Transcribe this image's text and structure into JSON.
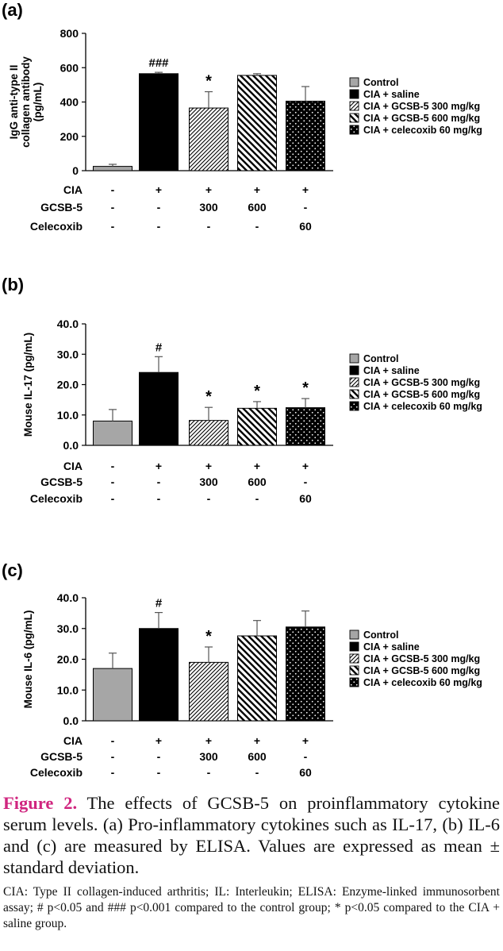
{
  "colors": {
    "control": "#a6a6a6",
    "saline": "#000000",
    "gcsb300": "#ffffff",
    "gcsb600": "#ffffff",
    "celecoxib": "#000000",
    "axis": "#000000",
    "caption_label": "#d0257f"
  },
  "legend": {
    "entries": [
      "Control",
      "CIA + saline",
      "CIA + GCSB-5 300 mg/kg",
      "CIA + GCSB-5 600 mg/kg",
      "CIA + celecoxib 60 mg/kg"
    ],
    "placement": "right"
  },
  "conditions": {
    "labels": [
      "CIA",
      "GCSB-5",
      "Celecoxib"
    ],
    "rows": [
      [
        "-",
        "+",
        "+",
        "+",
        "+"
      ],
      [
        "-",
        "-",
        "300",
        "600",
        "-"
      ],
      [
        "-",
        "-",
        "-",
        "-",
        "60"
      ]
    ]
  },
  "chart_data": [
    {
      "panel": "(a)",
      "type": "bar",
      "ylabel": [
        "IgG anti-type II",
        "collagen antibody",
        "(pg/mL)"
      ],
      "ylim": [
        0,
        800
      ],
      "yticks": [
        "0",
        "200",
        "400",
        "600",
        "800"
      ],
      "values": [
        25,
        565,
        365,
        555,
        405
      ],
      "errors": [
        12,
        8,
        95,
        10,
        85
      ],
      "annotations": [
        "",
        "###",
        "*",
        "",
        ""
      ]
    },
    {
      "panel": "(b)",
      "type": "bar",
      "ylabel": [
        "Mouse IL-17 (pg/mL)"
      ],
      "ylim": [
        0,
        40
      ],
      "yticks": [
        "0.0",
        "10.0",
        "20.0",
        "30.0",
        "40.0"
      ],
      "values": [
        8.0,
        24.0,
        8.2,
        12.2,
        12.4
      ],
      "errors": [
        3.8,
        5.2,
        4.3,
        2.2,
        3.0
      ],
      "annotations": [
        "",
        "#",
        "*",
        "*",
        "*"
      ]
    },
    {
      "panel": "(c)",
      "type": "bar",
      "ylabel": [
        "Mouse IL-6 (pg/mL)"
      ],
      "ylim": [
        0,
        40
      ],
      "yticks": [
        "0.0",
        "10.0",
        "20.0",
        "30.0",
        "40.0"
      ],
      "values": [
        17.0,
        30.0,
        19.0,
        27.6,
        30.5
      ],
      "errors": [
        5.0,
        5.2,
        5.0,
        5.0,
        5.2
      ],
      "annotations": [
        "",
        "#",
        "*",
        "",
        ""
      ]
    }
  ],
  "caption": {
    "label": "Figure 2.",
    "main_text": "The effects of GCSB-5 on proinflammatory cytokine serum levels. (a) Pro-inflammatory cytokines such as IL-17, (b) IL-6 and (c) are measured by ELISA. Values are expressed as mean ± standard deviation.",
    "note": "CIA: Type II collagen-induced arthritis; IL: Interleukin; ELISA: Enzyme-linked immunosorbent assay; # p<0.05 and ### p<0.001 compared to the control group; * p<0.05 compared to the CIA + saline group."
  }
}
